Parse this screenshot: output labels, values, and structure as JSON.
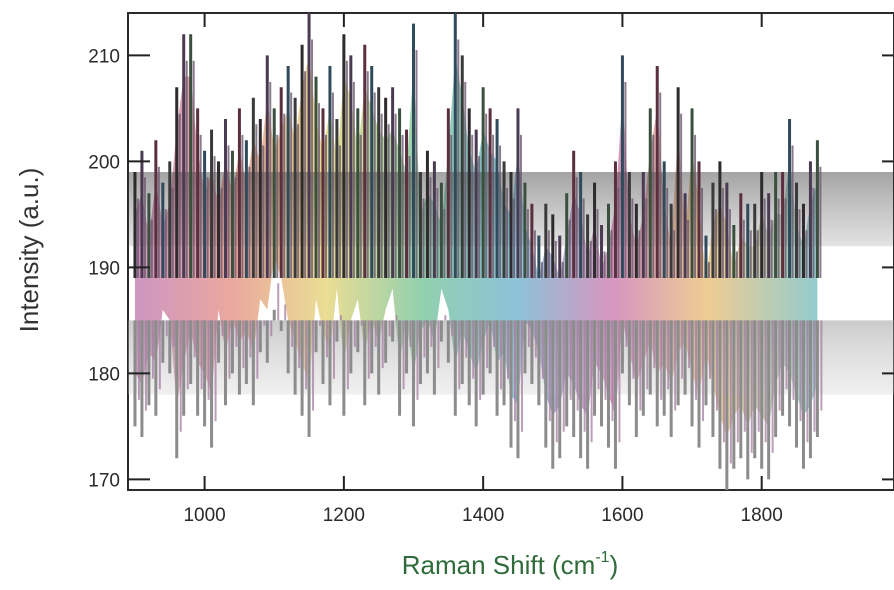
{
  "chart_data": {
    "type": "bar",
    "xlabel_main": "Raman Shift (cm",
    "xlabel_sup": "-1",
    "xlabel_close": ")",
    "ylabel": "Intensity (a.u.)",
    "xlim": [
      890,
      1990
    ],
    "ylim": [
      169,
      214
    ],
    "xticks": [
      1000,
      1200,
      1400,
      1600,
      1800
    ],
    "xtick_labels": [
      "1000",
      "1200",
      "1400",
      "1600",
      "1800"
    ],
    "yticks": [
      170,
      180,
      190,
      200,
      210
    ],
    "ytick_labels": [
      "170",
      "180",
      "190",
      "200",
      "210"
    ],
    "baseline": 189,
    "grid": false,
    "spectrum": {
      "x": [
        900,
        910,
        920,
        930,
        940,
        950,
        960,
        970,
        980,
        990,
        1000,
        1010,
        1020,
        1030,
        1040,
        1050,
        1060,
        1070,
        1080,
        1090,
        1100,
        1110,
        1120,
        1130,
        1140,
        1150,
        1160,
        1170,
        1180,
        1190,
        1200,
        1210,
        1220,
        1230,
        1240,
        1250,
        1260,
        1270,
        1280,
        1290,
        1300,
        1310,
        1320,
        1330,
        1340,
        1350,
        1360,
        1370,
        1380,
        1390,
        1400,
        1410,
        1420,
        1430,
        1440,
        1450,
        1460,
        1470,
        1480,
        1490,
        1500,
        1510,
        1520,
        1530,
        1540,
        1550,
        1560,
        1570,
        1580,
        1590,
        1600,
        1610,
        1620,
        1630,
        1640,
        1650,
        1660,
        1670,
        1680,
        1690,
        1700,
        1710,
        1720,
        1730,
        1740,
        1750,
        1760,
        1770,
        1780,
        1790,
        1800,
        1810,
        1820,
        1830,
        1840,
        1850,
        1860,
        1870,
        1880
      ],
      "upper": [
        199,
        201,
        197,
        202,
        198,
        200,
        207,
        212,
        212,
        205,
        201,
        203,
        200,
        204,
        201,
        205,
        202,
        206,
        204,
        210,
        205,
        207,
        209,
        206,
        211,
        214,
        208,
        205,
        209,
        204,
        212,
        210,
        205,
        211,
        209,
        207,
        206,
        207,
        205,
        203,
        213,
        199,
        201,
        200,
        198,
        205,
        214,
        210,
        205,
        203,
        207,
        205,
        204,
        200,
        199,
        205,
        198,
        196,
        193,
        196,
        195,
        193,
        197,
        201,
        199,
        195,
        198,
        194,
        196,
        200,
        210,
        199,
        196,
        199,
        205,
        209,
        200,
        196,
        207,
        197,
        205,
        200,
        193,
        198,
        200,
        198,
        194,
        197,
        196,
        196,
        199,
        197,
        199,
        199,
        204,
        198,
        196,
        200,
        202
      ],
      "lower": [
        175,
        174,
        177,
        176,
        181,
        180,
        172,
        176,
        179,
        176,
        175,
        173,
        181,
        177,
        180,
        178,
        179,
        177,
        182,
        181,
        186,
        184,
        180,
        178,
        176,
        174,
        182,
        179,
        177,
        183,
        176,
        180,
        182,
        177,
        180,
        178,
        181,
        183,
        176,
        180,
        175,
        179,
        180,
        178,
        183,
        181,
        176,
        179,
        177,
        175,
        178,
        180,
        176,
        177,
        173,
        172,
        180,
        179,
        177,
        173,
        171,
        172,
        175,
        174,
        172,
        171,
        176,
        175,
        173,
        171,
        180,
        177,
        174,
        176,
        178,
        175,
        176,
        174,
        177,
        178,
        175,
        173,
        177,
        174,
        171,
        169,
        171,
        172,
        170,
        172,
        171,
        170,
        174,
        176,
        175,
        173,
        171,
        172,
        174
      ]
    }
  }
}
